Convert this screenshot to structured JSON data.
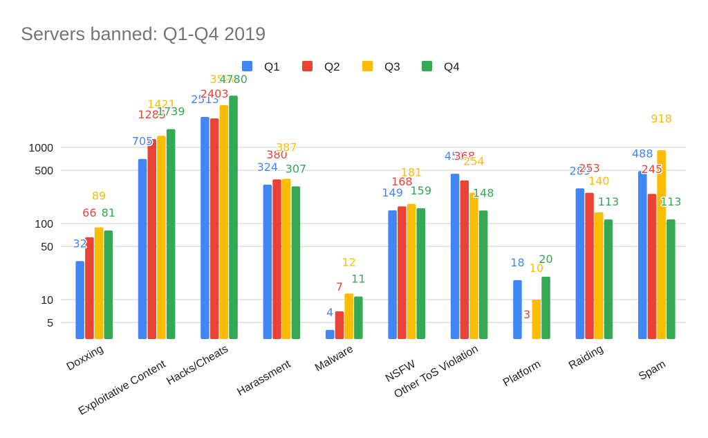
{
  "chart_data": {
    "type": "bar",
    "title": "Servers banned: Q1-Q4 2019",
    "xlabel": "",
    "ylabel": "",
    "yscale": "log",
    "ylim": [
      3,
      5000
    ],
    "yticks": [
      5,
      10,
      50,
      100,
      500,
      1000
    ],
    "ytick_labels": [
      "5",
      "10",
      "50",
      "100",
      "500",
      "1000"
    ],
    "grid": true,
    "legend_position": "top-center",
    "categories": [
      "Doxxing",
      "Exploitative Content",
      "Hacks/Cheats",
      "Harassment",
      "Malware",
      "NSFW",
      "Other ToS Violation",
      "Platform",
      "Raiding",
      "Spam"
    ],
    "series": [
      {
        "name": "Q1",
        "color": "#4285f4",
        "values": [
          32,
          705,
          2513,
          324,
          4,
          149,
          450,
          18,
          289,
          488
        ]
      },
      {
        "name": "Q2",
        "color": "#ea4335",
        "values": [
          66,
          1285,
          2403,
          380,
          7,
          168,
          368,
          3,
          253,
          245
        ]
      },
      {
        "name": "Q3",
        "color": "#fbbc04",
        "values": [
          89,
          1421,
          3590,
          387,
          12,
          181,
          254,
          10,
          140,
          918
        ]
      },
      {
        "name": "Q4",
        "color": "#34a853",
        "values": [
          81,
          1739,
          4780,
          307,
          11,
          159,
          148,
          20,
          113,
          113
        ]
      }
    ]
  }
}
